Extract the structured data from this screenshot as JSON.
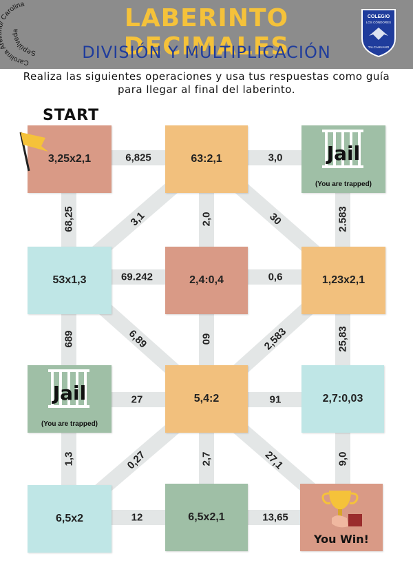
{
  "header": {
    "title": "LABERINTO DECIMALES",
    "subtitle": "DIVISIÓN Y MULTIPLICACIÓN",
    "author_line1": "Carolina Arellano/ Carolina",
    "author_line2": "Sepúlveda",
    "logo": {
      "line1": "COLEGIO",
      "line2": "LOS CÓNDORES",
      "line3": "TALCAHUANO"
    }
  },
  "instructions": {
    "line1": "Realiza las siguientes operaciones y usa tus respuestas como guía",
    "line2": "para llegar al final del laberinto."
  },
  "start_label": "START",
  "boxes": {
    "r1c1": "3,25x2,1",
    "r1c2": "63:2,1",
    "r2c1": "53x1,3",
    "r2c2": "2,4:0,4",
    "r2c3": "1,23x2,1",
    "r3c2": "5,4:2",
    "r3c3": "2,7:0,03",
    "r4c1": "6,5x2",
    "r4c2": "6,5x2,1"
  },
  "jail": {
    "title": "Jail",
    "subtitle": "(You are trapped)"
  },
  "win": {
    "text": "You Win!"
  },
  "answers": {
    "h1_12": "6,825",
    "h1_23": "3,0",
    "h2_12": "69.242",
    "h2_23": "0,6",
    "h3_12": "27",
    "h3_23": "91",
    "h4_12": "12",
    "h4_23": "13,65",
    "v_c1_12": "68,25",
    "v_c2_12": "2,0",
    "v_c3_12": "2.583",
    "v_c1_23": "689",
    "v_c2_23": "09",
    "v_c3_23": "25,83",
    "v_c1_34": "1,3",
    "v_c2_34": "2,7",
    "v_c3_34": "9,0",
    "d_a": "3,1",
    "d_b": "30",
    "d_c": "6,89",
    "d_d": "2,583",
    "d_e": "0,27",
    "d_f": "27,1"
  },
  "colors": {
    "header_bg": "#8c8c8c",
    "title": "#f5c23a",
    "subtitle": "#1f3c9c",
    "salmon": "#d99a86",
    "orange": "#f2c07d",
    "aqua": "#bfe6e6",
    "green": "#9fbfa6",
    "path": "#e3e6e6"
  }
}
